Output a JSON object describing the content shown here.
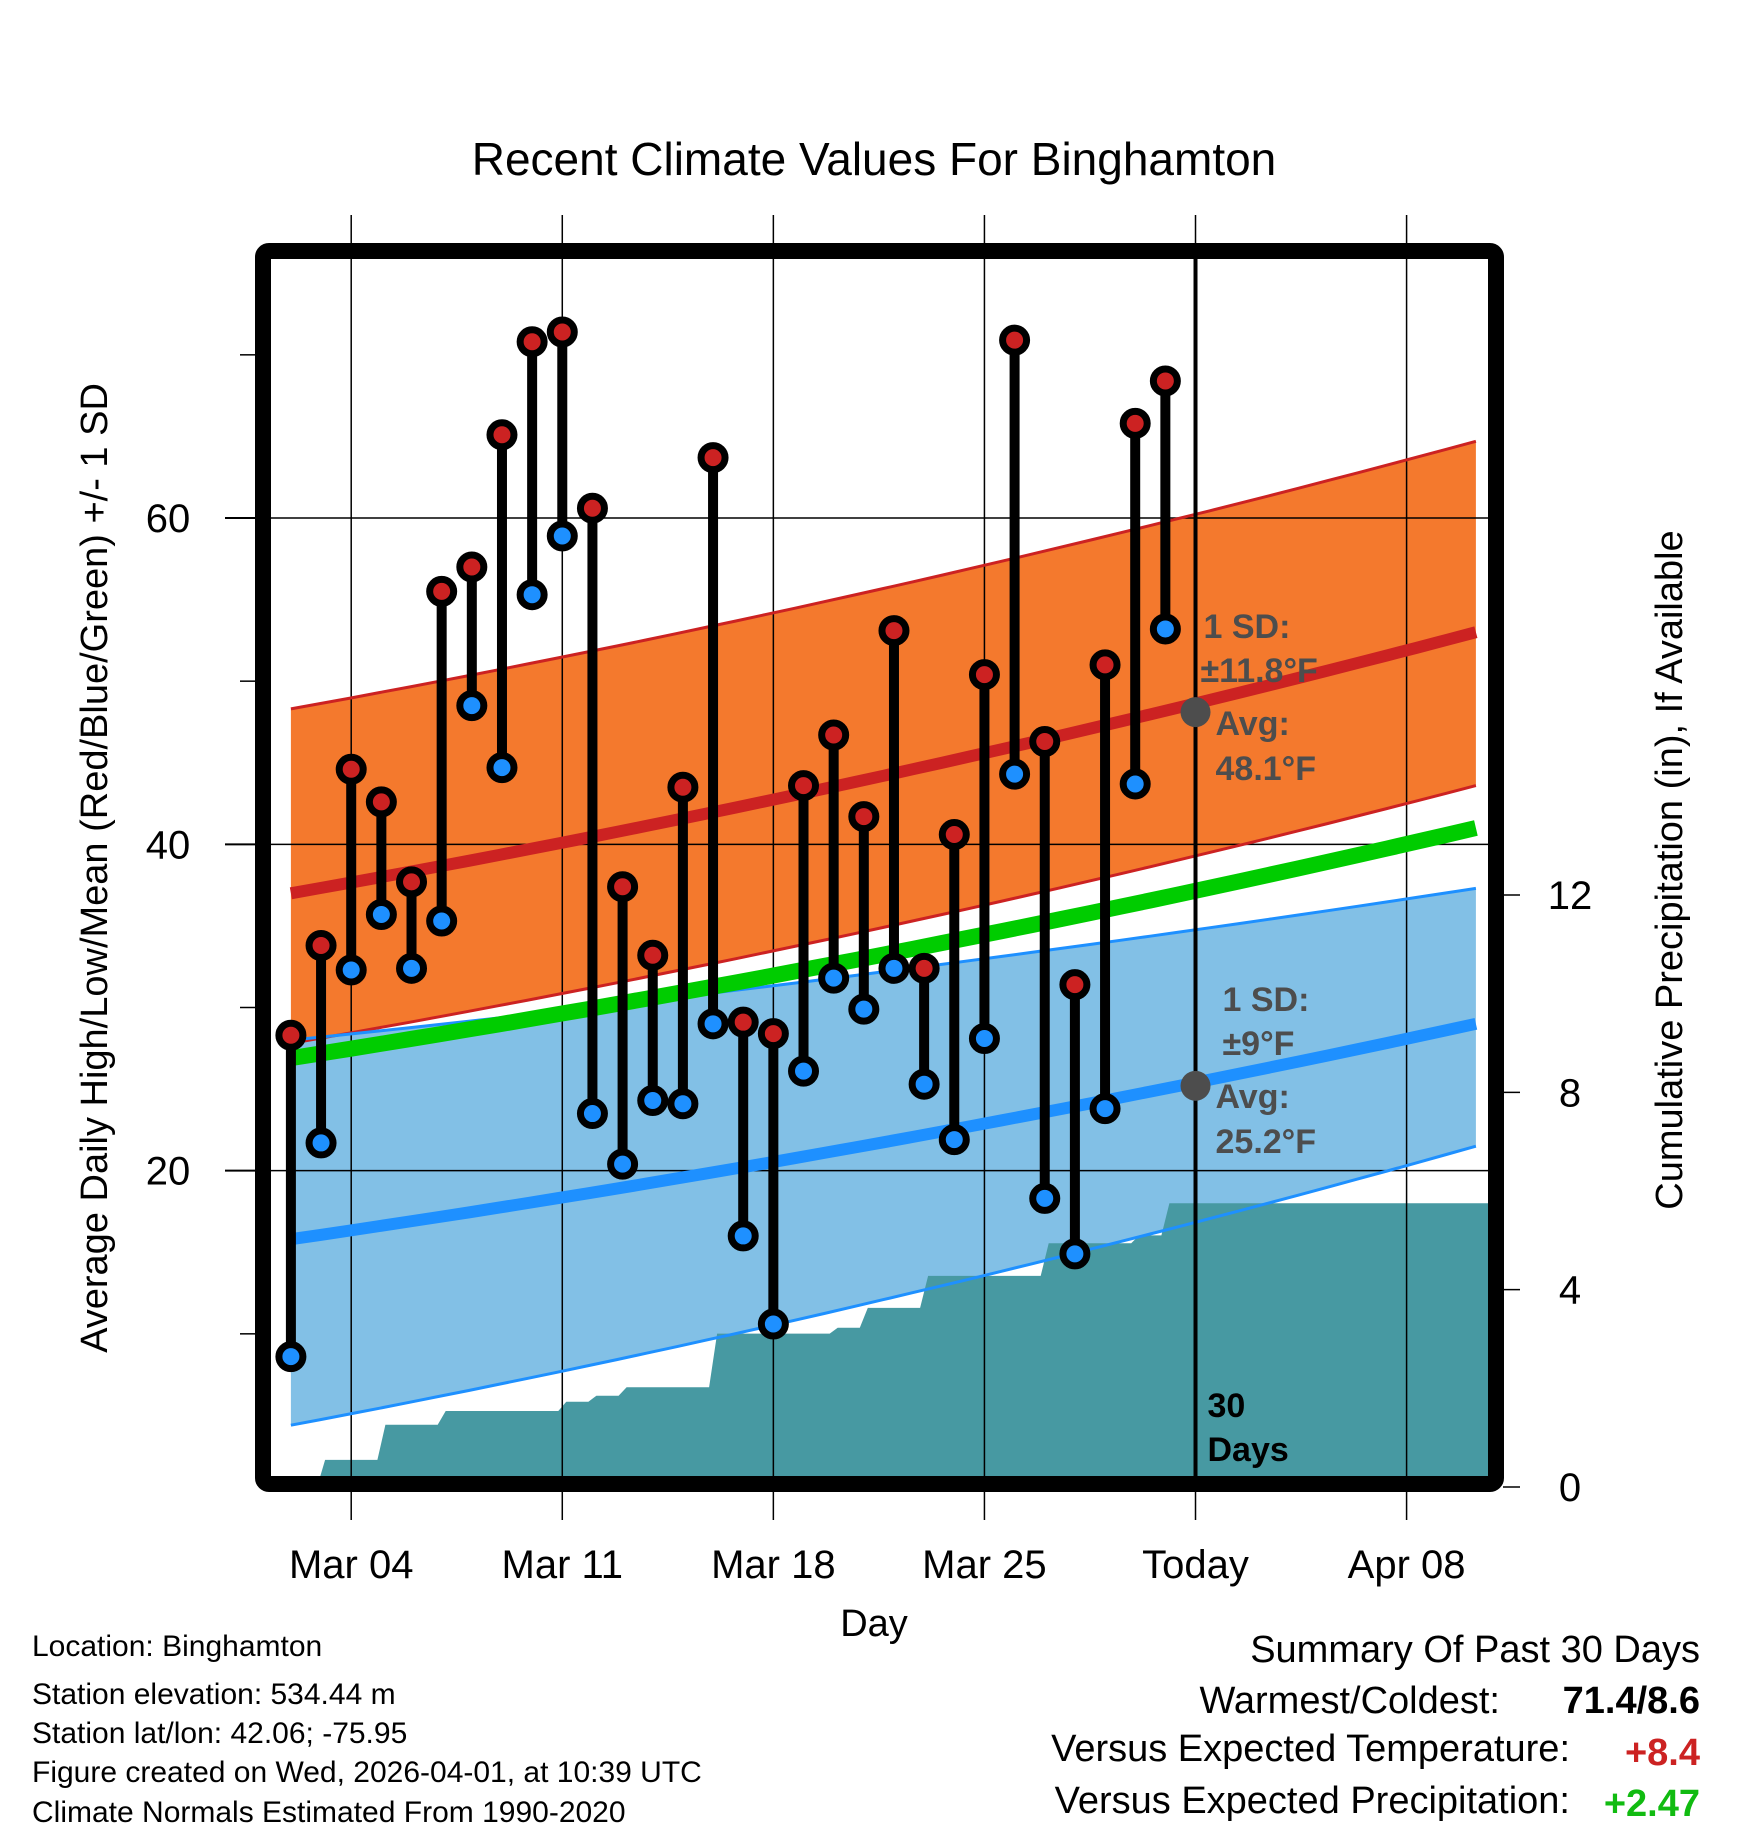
{
  "chart_data": {
    "type": "line",
    "title": "Recent Climate Values For Binghamton",
    "xlabel": "Day",
    "ylabel": "Average Daily High/Low/Mean (Red/Blue/Green) +/- 1 SD",
    "y2label": "Cumulative Precipitation (in), If Available",
    "ylim": [
      0,
      76
    ],
    "y2lim": [
      0,
      15.3
    ],
    "grid": true,
    "x_ticks": [
      {
        "offset": 0,
        "label": "Mar 04",
        "bold": false
      },
      {
        "offset": 7,
        "label": "Mar 11",
        "bold": false
      },
      {
        "offset": 14,
        "label": "Mar 18",
        "bold": false
      },
      {
        "offset": 21,
        "label": "Mar 25",
        "bold": false
      },
      {
        "offset": 28,
        "label": "Today",
        "bold": false
      },
      {
        "offset": 35,
        "label": "Apr 08",
        "bold": false
      }
    ],
    "y_ticks": [
      20,
      40,
      60
    ],
    "y_minor_ticks": [
      10,
      30,
      50,
      70
    ],
    "y2_ticks": [
      0,
      4,
      8,
      12
    ],
    "x_range_days_from_mar04": [
      -2.66,
      37.7
    ],
    "days": [
      "Mar 02",
      "Mar 03",
      "Mar 04",
      "Mar 05",
      "Mar 06",
      "Mar 07",
      "Mar 08",
      "Mar 09",
      "Mar 10",
      "Mar 11",
      "Mar 12",
      "Mar 13",
      "Mar 14",
      "Mar 15",
      "Mar 16",
      "Mar 17",
      "Mar 18",
      "Mar 19",
      "Mar 20",
      "Mar 21",
      "Mar 22",
      "Mar 23",
      "Mar 24",
      "Mar 25",
      "Mar 26",
      "Mar 27",
      "Mar 28",
      "Mar 29",
      "Mar 30",
      "Mar 31"
    ],
    "series": [
      {
        "name": "Daily High",
        "color": "#cc2222",
        "values": [
          28.3,
          33.8,
          44.6,
          42.6,
          37.7,
          55.5,
          57.0,
          65.1,
          70.8,
          71.4,
          60.6,
          37.4,
          33.2,
          43.5,
          63.7,
          29.1,
          28.4,
          43.6,
          46.7,
          41.7,
          53.1,
          32.4,
          40.6,
          50.4,
          70.9,
          46.3,
          31.4,
          51.0,
          65.8,
          68.4
        ]
      },
      {
        "name": "Daily Low",
        "color": "#1e90ff",
        "values": [
          8.6,
          21.7,
          32.3,
          35.7,
          32.4,
          35.3,
          48.5,
          44.7,
          55.3,
          58.9,
          23.5,
          20.4,
          24.3,
          24.1,
          29.0,
          16.0,
          10.6,
          26.1,
          31.8,
          29.9,
          32.4,
          25.3,
          21.9,
          28.1,
          44.3,
          18.3,
          14.9,
          23.8,
          43.7,
          53.2
        ]
      },
      {
        "name": "Cumulative Precipitation",
        "color": "#4799a2",
        "axis": "right",
        "values": [
          0.0,
          0.55,
          0.55,
          1.26,
          1.26,
          1.54,
          1.54,
          1.54,
          1.54,
          1.73,
          1.85,
          2.02,
          2.02,
          2.02,
          3.11,
          3.11,
          3.11,
          3.11,
          3.23,
          3.63,
          3.63,
          4.28,
          4.28,
          4.28,
          4.28,
          4.94,
          4.94,
          4.94,
          5.1,
          5.75
        ],
        "extends_to_end": 5.75
      }
    ],
    "normals": {
      "x_offsets": [
        -2,
        37.3
      ],
      "mean_high": {
        "name": "Normal High",
        "color": "#cc2222",
        "values": [
          37.0,
          53.0
        ]
      },
      "high_plus_sd": {
        "values": [
          48.3,
          64.7
        ]
      },
      "high_minus_sd": {
        "values": [
          27.8,
          43.6
        ]
      },
      "mean": {
        "name": "Normal Mean",
        "color": "#00cc00",
        "values": [
          26.9,
          41.0
        ]
      },
      "mean_low": {
        "name": "Normal Low",
        "color": "#1e90ff",
        "values": [
          15.8,
          29.0
        ]
      },
      "low_plus_sd": {
        "values": [
          28.0,
          37.3
        ]
      },
      "low_minus_sd": {
        "values": [
          4.4,
          21.5
        ]
      }
    },
    "colors": {
      "high_band": "#f4792d",
      "low_band": "#82c0e6",
      "precip": "#4799a2",
      "frame": "#000000",
      "annotation": "#4d4d4d"
    },
    "annotations": {
      "high": {
        "sd_label": "1 SD:",
        "sd_value": "±11.8°F",
        "avg_label": "Avg:",
        "avg_value": "48.1°F",
        "avg": 48.1
      },
      "low": {
        "sd_label": "1 SD:",
        "sd_value": "±9°F",
        "avg_label": "Avg:",
        "avg_value": "25.2°F",
        "avg": 25.2
      },
      "today_line_label": [
        "30",
        "Days"
      ]
    }
  },
  "footer": {
    "location": "Location: Binghamton",
    "elevation": "Station elevation: 534.44 m",
    "latlon": "Station lat/lon: 42.06; -75.95",
    "created": "Figure created on Wed, 2026-04-01, at 10:39 UTC",
    "normals": "Climate Normals Estimated From 1990-2020"
  },
  "summary": {
    "title": "Summary Of Past 30 Days",
    "warmest_coldest_label": "Warmest/Coldest:",
    "warmest_coldest_value": "71.4/8.6",
    "temp_label": "Versus Expected Temperature:",
    "temp_value": "+8.4",
    "temp_color": "#cc2222",
    "precip_label": "Versus Expected Precipitation:",
    "precip_value": "+2.47",
    "precip_color": "#11bb11"
  }
}
